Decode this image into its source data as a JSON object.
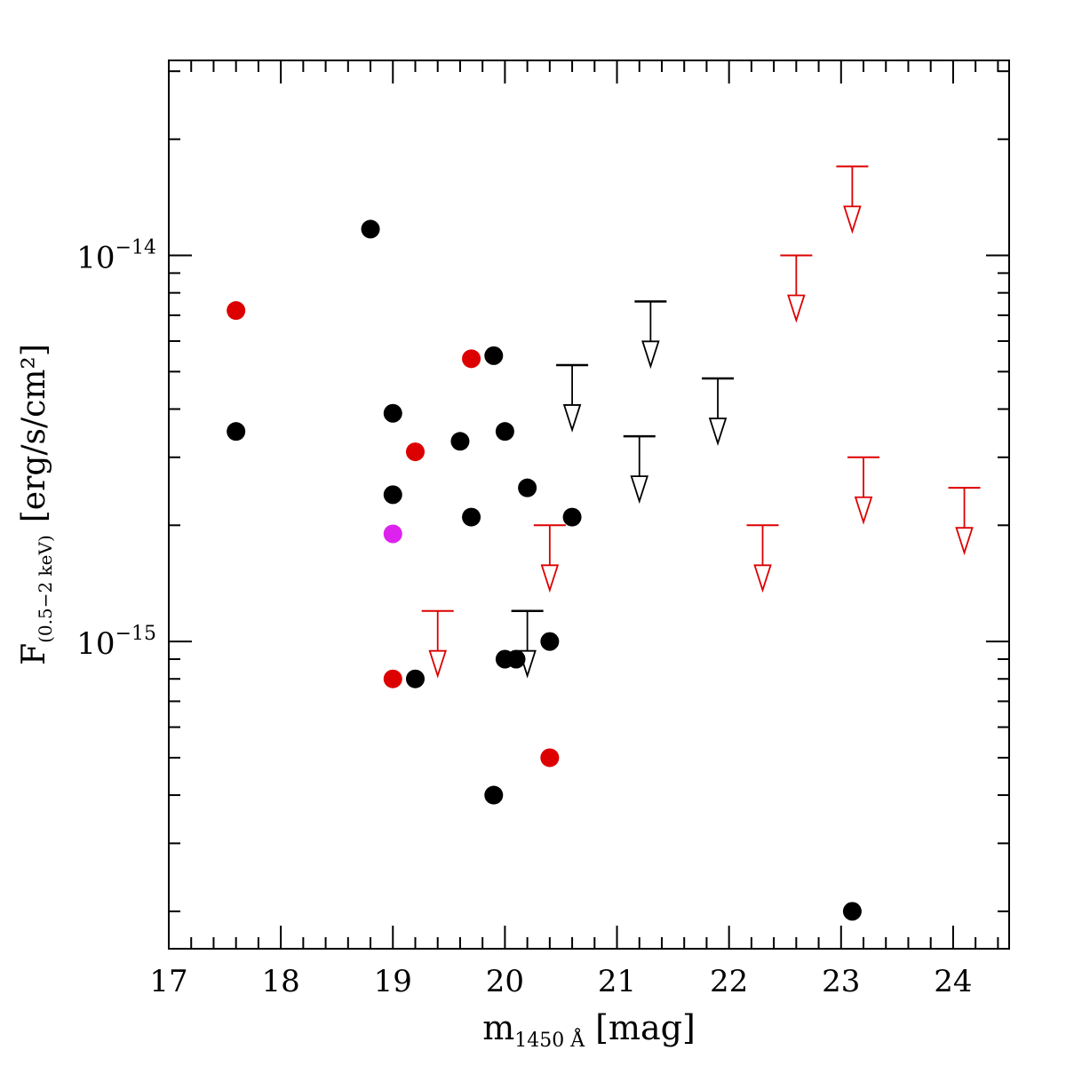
{
  "chart_data": {
    "type": "scatter",
    "title": "",
    "xlabel": {
      "main": "m",
      "sub": "1450 Å",
      "unit": "[mag]"
    },
    "ylabel": {
      "main": "F",
      "sub": "(0.5−2 keV)",
      "unit": "[erg/s/cm²]"
    },
    "xlim": [
      17,
      24.5
    ],
    "ylim": [
      1.6e-16,
      3.2e-14
    ],
    "yscale": "log",
    "x_tick_labels": [
      "17",
      "18",
      "19",
      "20",
      "21",
      "22",
      "23",
      "24"
    ],
    "x_tick_values": [
      17,
      18,
      19,
      20,
      21,
      22,
      23,
      24
    ],
    "y_tick_labels": [
      {
        "base": "10",
        "exp": "−14",
        "value": 1e-14
      },
      {
        "base": "10",
        "exp": "−15",
        "value": 1e-15
      }
    ],
    "colors": {
      "black": "#000000",
      "red": "#dd0000",
      "magenta": "#dd22ee"
    },
    "series": [
      {
        "name": "black-detections",
        "color": "#000000",
        "marker": "filled-circle",
        "points": [
          {
            "x": 17.6,
            "y": 3.5e-15
          },
          {
            "x": 18.8,
            "y": 1.17e-14
          },
          {
            "x": 19.0,
            "y": 3.9e-15
          },
          {
            "x": 19.0,
            "y": 2.4e-15
          },
          {
            "x": 19.2,
            "y": 8e-16
          },
          {
            "x": 19.6,
            "y": 3.3e-15
          },
          {
            "x": 19.7,
            "y": 2.1e-15
          },
          {
            "x": 19.9,
            "y": 5.5e-15
          },
          {
            "x": 19.9,
            "y": 4e-16
          },
          {
            "x": 20.0,
            "y": 3.5e-15
          },
          {
            "x": 20.0,
            "y": 9e-16
          },
          {
            "x": 20.1,
            "y": 9e-16
          },
          {
            "x": 20.2,
            "y": 2.5e-15
          },
          {
            "x": 20.4,
            "y": 1e-15
          },
          {
            "x": 20.6,
            "y": 2.1e-15
          },
          {
            "x": 23.1,
            "y": 2e-16
          }
        ]
      },
      {
        "name": "red-detections",
        "color": "#dd0000",
        "marker": "filled-circle",
        "points": [
          {
            "x": 17.6,
            "y": 7.2e-15
          },
          {
            "x": 19.0,
            "y": 8e-16
          },
          {
            "x": 19.2,
            "y": 3.1e-15
          },
          {
            "x": 19.7,
            "y": 5.4e-15
          },
          {
            "x": 20.4,
            "y": 5e-16
          }
        ]
      },
      {
        "name": "magenta-detection",
        "color": "#dd22ee",
        "marker": "filled-circle",
        "points": [
          {
            "x": 19.0,
            "y": 1.9e-15
          }
        ]
      },
      {
        "name": "black-upper-limits",
        "color": "#000000",
        "marker": "upper-limit-arrow",
        "points": [
          {
            "x": 20.2,
            "y": 1.2e-15
          },
          {
            "x": 20.6,
            "y": 5.2e-15
          },
          {
            "x": 21.2,
            "y": 3.4e-15
          },
          {
            "x": 21.3,
            "y": 7.6e-15
          },
          {
            "x": 21.9,
            "y": 4.8e-15
          }
        ]
      },
      {
        "name": "red-upper-limits",
        "color": "#dd0000",
        "marker": "upper-limit-arrow",
        "points": [
          {
            "x": 19.4,
            "y": 1.2e-15
          },
          {
            "x": 20.4,
            "y": 2e-15
          },
          {
            "x": 22.3,
            "y": 2e-15
          },
          {
            "x": 22.6,
            "y": 1e-14
          },
          {
            "x": 23.1,
            "y": 1.7e-14
          },
          {
            "x": 23.2,
            "y": 3e-15
          },
          {
            "x": 24.1,
            "y": 2.5e-15
          }
        ]
      }
    ]
  }
}
